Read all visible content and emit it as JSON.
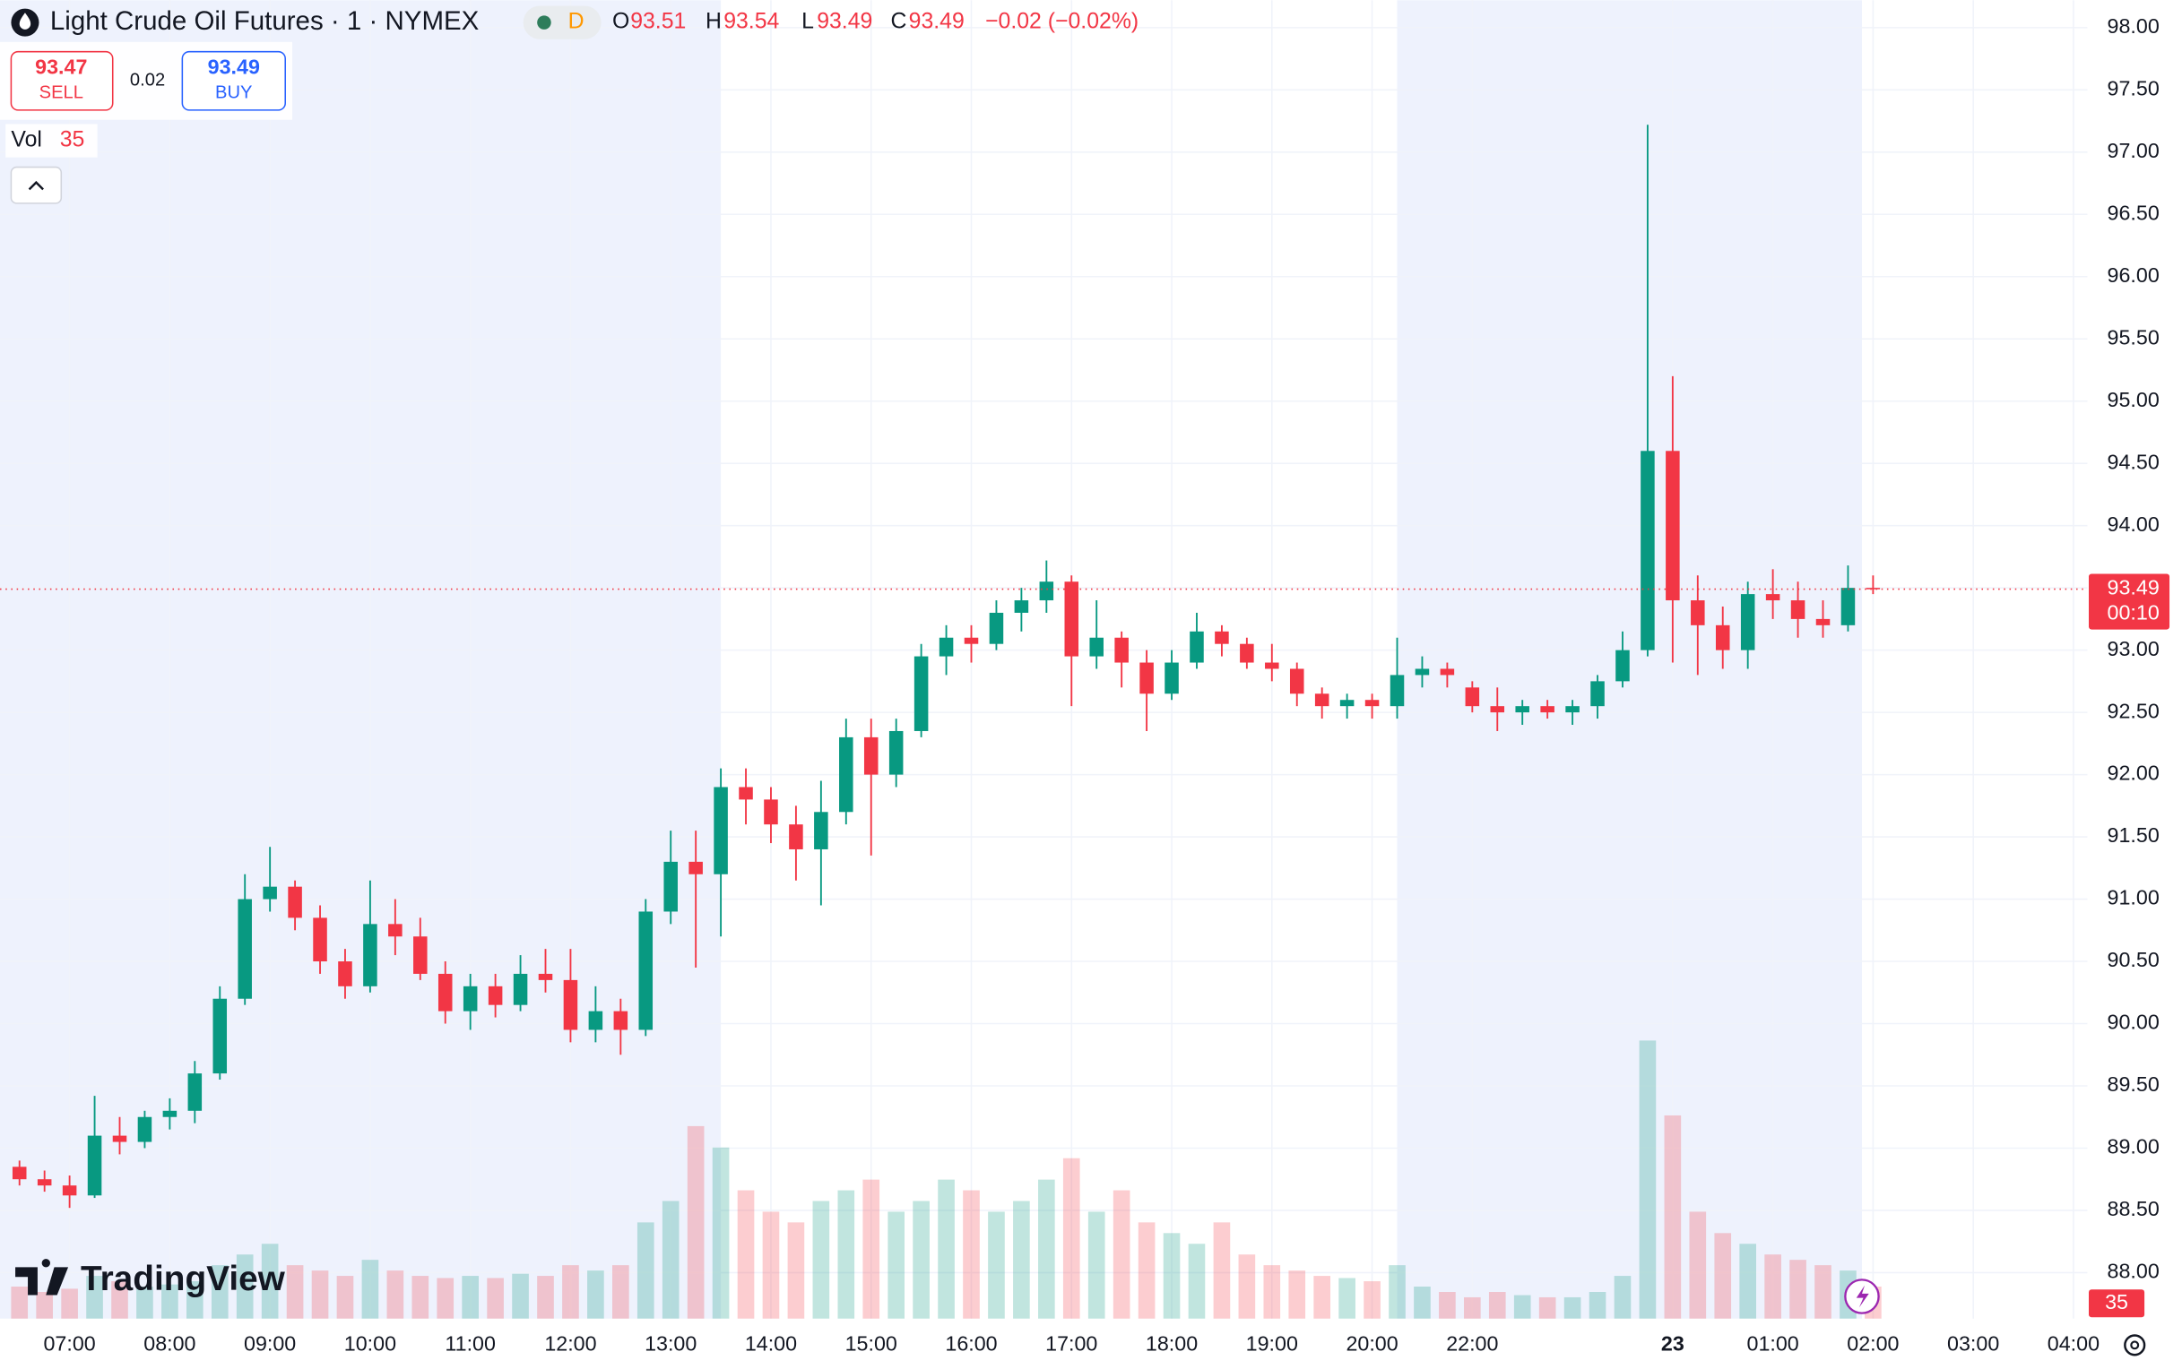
{
  "header": {
    "title": "Light Crude Oil Futures · 1 · NYMEX",
    "interval_flag": "D",
    "ohlc": [
      {
        "label": "O",
        "value": 93.51
      },
      {
        "label": "H",
        "value": 93.54
      },
      {
        "label": "L",
        "value": 93.49
      },
      {
        "label": "C",
        "value": 93.49
      }
    ],
    "change": "−0.02 (−0.02%)",
    "sell": {
      "price": 93.47,
      "label": "SELL"
    },
    "spread": 0.02,
    "buy": {
      "price": 93.49,
      "label": "BUY"
    },
    "volume_label": "Vol",
    "countdown": "00:10",
    "watermark": "TradingView"
  },
  "chart_data": {
    "type": "candlestick",
    "up_color": "#089981",
    "down_color": "#f23645",
    "grid": true,
    "x": [
      "06:30",
      "06:45",
      "07:00",
      "07:15",
      "07:30",
      "07:45",
      "08:00",
      "08:15",
      "08:30",
      "08:45",
      "09:00",
      "09:15",
      "09:30",
      "09:45",
      "10:00",
      "10:15",
      "10:30",
      "10:45",
      "11:00",
      "11:15",
      "11:30",
      "11:45",
      "12:00",
      "12:15",
      "12:30",
      "12:45",
      "13:00",
      "13:15",
      "13:30",
      "13:45",
      "14:00",
      "14:15",
      "14:30",
      "14:45",
      "15:00",
      "15:15",
      "15:30",
      "15:45",
      "16:00",
      "16:15",
      "16:30",
      "16:45",
      "17:00",
      "17:15",
      "17:30",
      "17:45",
      "18:00",
      "18:15",
      "18:30",
      "18:45",
      "19:00",
      "19:15",
      "19:30",
      "19:45",
      "20:00",
      "20:15",
      "20:30",
      "20:45",
      "22:00",
      "22:15",
      "22:30",
      "22:45",
      "23:00",
      "23:15",
      "23:30",
      "23:45",
      "00:00",
      "00:15",
      "00:30",
      "00:45",
      "01:00",
      "01:15",
      "01:30",
      "01:45",
      "02:00"
    ],
    "open": [
      88.85,
      88.75,
      88.7,
      88.62,
      89.1,
      89.05,
      89.25,
      89.3,
      89.6,
      90.2,
      91.0,
      91.1,
      90.85,
      90.5,
      90.3,
      90.8,
      90.7,
      90.4,
      90.1,
      90.3,
      90.15,
      90.4,
      90.35,
      89.95,
      90.1,
      89.95,
      90.9,
      91.3,
      91.2,
      91.9,
      91.8,
      91.6,
      91.4,
      91.7,
      92.3,
      92.0,
      92.35,
      92.95,
      93.1,
      93.05,
      93.3,
      93.4,
      93.55,
      92.95,
      93.1,
      92.9,
      92.65,
      92.9,
      93.15,
      93.05,
      92.9,
      92.85,
      92.65,
      92.55,
      92.6,
      92.55,
      92.8,
      92.85,
      92.7,
      92.55,
      92.5,
      92.55,
      92.5,
      92.55,
      92.75,
      93.0,
      94.6,
      93.4,
      93.2,
      93.0,
      93.45,
      93.4,
      93.25,
      93.2,
      93.5
    ],
    "high": [
      88.9,
      88.82,
      88.78,
      89.42,
      89.25,
      89.3,
      89.4,
      89.7,
      90.3,
      91.2,
      91.42,
      91.15,
      90.95,
      90.6,
      91.15,
      91.0,
      90.85,
      90.5,
      90.4,
      90.4,
      90.55,
      90.6,
      90.6,
      90.3,
      90.2,
      91.0,
      91.55,
      91.55,
      92.05,
      92.05,
      91.9,
      91.75,
      91.95,
      92.45,
      92.45,
      92.45,
      93.05,
      93.2,
      93.2,
      93.4,
      93.5,
      93.72,
      93.6,
      93.4,
      93.15,
      93.0,
      93.0,
      93.3,
      93.2,
      93.1,
      93.05,
      92.9,
      92.7,
      92.65,
      92.65,
      93.1,
      92.95,
      92.9,
      92.75,
      92.7,
      92.6,
      92.6,
      92.6,
      92.8,
      93.15,
      97.22,
      95.2,
      93.6,
      93.35,
      93.55,
      93.65,
      93.55,
      93.4,
      93.68,
      93.6
    ],
    "low": [
      88.7,
      88.65,
      88.52,
      88.6,
      88.95,
      89.0,
      89.15,
      89.2,
      89.55,
      90.15,
      90.9,
      90.75,
      90.4,
      90.2,
      90.25,
      90.55,
      90.35,
      90.0,
      89.95,
      90.05,
      90.1,
      90.25,
      89.85,
      89.85,
      89.75,
      89.9,
      90.8,
      90.45,
      90.7,
      91.6,
      91.45,
      91.15,
      90.95,
      91.6,
      91.35,
      91.9,
      92.3,
      92.8,
      92.9,
      93.0,
      93.15,
      93.3,
      92.55,
      92.85,
      92.7,
      92.35,
      92.6,
      92.85,
      92.95,
      92.85,
      92.75,
      92.55,
      92.45,
      92.45,
      92.45,
      92.45,
      92.7,
      92.7,
      92.5,
      92.35,
      92.4,
      92.45,
      92.4,
      92.45,
      92.7,
      92.95,
      92.9,
      92.8,
      92.85,
      92.85,
      93.25,
      93.1,
      93.1,
      93.15,
      93.45
    ],
    "close": [
      88.75,
      88.7,
      88.62,
      89.1,
      89.05,
      89.25,
      89.3,
      89.6,
      90.2,
      91.0,
      91.1,
      90.85,
      90.5,
      90.3,
      90.8,
      90.7,
      90.4,
      90.1,
      90.3,
      90.15,
      90.4,
      90.35,
      89.95,
      90.1,
      89.95,
      90.9,
      91.3,
      91.2,
      91.9,
      91.8,
      91.6,
      91.4,
      91.7,
      92.3,
      92.0,
      92.35,
      92.95,
      93.1,
      93.05,
      93.3,
      93.4,
      93.55,
      92.95,
      93.1,
      92.9,
      92.65,
      92.9,
      93.15,
      93.05,
      92.9,
      92.85,
      92.65,
      92.55,
      92.6,
      92.55,
      92.8,
      92.85,
      92.8,
      92.55,
      92.5,
      92.55,
      92.5,
      92.55,
      92.75,
      93.0,
      94.6,
      93.4,
      93.2,
      93.0,
      93.45,
      93.4,
      93.25,
      93.2,
      93.5,
      93.49
    ],
    "volume": [
      300,
      250,
      280,
      400,
      350,
      300,
      320,
      350,
      500,
      600,
      700,
      500,
      450,
      400,
      550,
      450,
      400,
      380,
      400,
      380,
      420,
      400,
      500,
      450,
      500,
      900,
      1100,
      1800,
      1600,
      1200,
      1000,
      900,
      1100,
      1200,
      1300,
      1000,
      1100,
      1300,
      1200,
      1000,
      1100,
      1300,
      1500,
      1000,
      1200,
      900,
      800,
      700,
      900,
      600,
      500,
      450,
      400,
      380,
      350,
      500,
      300,
      250,
      200,
      250,
      220,
      200,
      200,
      250,
      400,
      2600,
      1900,
      1000,
      800,
      700,
      600,
      550,
      500,
      450,
      300
    ],
    "last_volume": 35,
    "ylim": [
      87.63,
      98.22
    ],
    "yticks": [
      {
        "value": 88,
        "label": "88.00"
      },
      {
        "value": 88.5,
        "label": "88.50"
      },
      {
        "value": 89,
        "label": "89.00"
      },
      {
        "value": 89.5,
        "label": "89.50"
      },
      {
        "value": 90,
        "label": "90.00"
      },
      {
        "value": 90.5,
        "label": "90.50"
      },
      {
        "value": 91,
        "label": "91.00"
      },
      {
        "value": 91.5,
        "label": "91.50"
      },
      {
        "value": 92,
        "label": "92.00"
      },
      {
        "value": 92.5,
        "label": "92.50"
      },
      {
        "value": 93,
        "label": "93.00"
      },
      {
        "value": 93.5,
        "label": "93.50"
      },
      {
        "value": 94,
        "label": "94.00"
      },
      {
        "value": 94.5,
        "label": "94.50"
      },
      {
        "value": 95,
        "label": "95.00"
      },
      {
        "value": 95.5,
        "label": "95.50"
      },
      {
        "value": 96,
        "label": "96.00"
      },
      {
        "value": 96.5,
        "label": "96.50"
      },
      {
        "value": 97,
        "label": "97.00"
      },
      {
        "value": 97.5,
        "label": "97.50"
      },
      {
        "value": 98,
        "label": "98.00"
      }
    ],
    "xticks": [
      "07:00",
      "08:00",
      "09:00",
      "10:00",
      "11:00",
      "12:00",
      "13:00",
      "14:00",
      "15:00",
      "16:00",
      "17:00",
      "18:00",
      "19:00",
      "20:00",
      "22:00",
      {
        "value": "00:00",
        "label": "23"
      },
      "01:00",
      "02:00",
      "03:00",
      "04:00"
    ]
  }
}
